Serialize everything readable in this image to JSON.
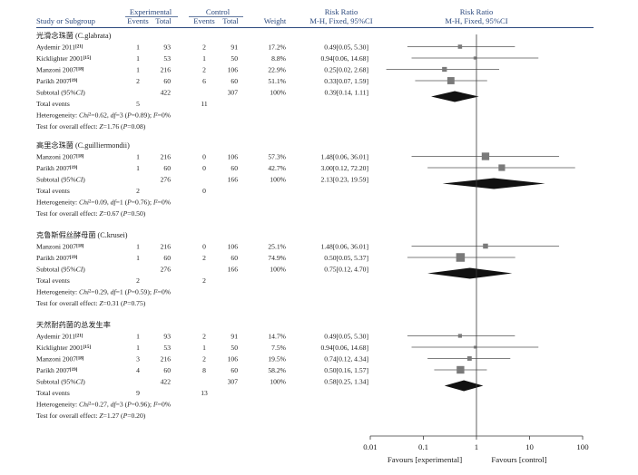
{
  "chart_data": {
    "type": "forest",
    "header": {
      "col_study": "Study or Subgroup",
      "group_experimental": "Experimental",
      "group_control": "Control",
      "col_events": "Events",
      "col_total": "Total",
      "col_weight": "Weight",
      "col_rr_title": "Risk Ratio",
      "col_rr_method": "M-H, Fixed, 95%CI",
      "plot_title": "Risk Ratio",
      "plot_method": "M-H, Fixed, 95%CI"
    },
    "x_axis": {
      "scale": "log",
      "ticks": [
        0.01,
        0.1,
        1,
        10,
        100
      ],
      "tick_labels": [
        "0.01",
        "0.1",
        "1",
        "10",
        "100"
      ],
      "favours_left": "Favours [experimental]",
      "favours_right": "Favours [control]"
    },
    "groups": [
      {
        "title": "光滑念珠菌 (C.glabrata)",
        "studies": [
          {
            "name": "Aydemir 2011",
            "ref": "[21]",
            "exp_events": "1",
            "exp_total": "93",
            "ctl_events": "2",
            "ctl_total": "91",
            "weight": "17.2%",
            "ci_text": "0.49[0.05, 5.30]",
            "rr": 0.49,
            "lo": 0.05,
            "hi": 5.3
          },
          {
            "name": "Kicklighter 2001",
            "ref": "[15]",
            "exp_events": "1",
            "exp_total": "53",
            "ctl_events": "1",
            "ctl_total": "50",
            "weight": "8.8%",
            "ci_text": "0.94[0.06, 14.68]",
            "rr": 0.94,
            "lo": 0.06,
            "hi": 14.68
          },
          {
            "name": "Manzoni 2007",
            "ref": "[18]",
            "exp_events": "1",
            "exp_total": "216",
            "ctl_events": "2",
            "ctl_total": "106",
            "weight": "22.9%",
            "ci_text": "0.25[0.02, 2.68]",
            "rr": 0.25,
            "lo": 0.02,
            "hi": 2.68
          },
          {
            "name": "Parikh 2007",
            "ref": "[19]",
            "exp_events": "2",
            "exp_total": "60",
            "ctl_events": "6",
            "ctl_total": "60",
            "weight": "51.1%",
            "ci_text": "0.33[0.07, 1.59]",
            "rr": 0.33,
            "lo": 0.07,
            "hi": 1.59
          }
        ],
        "subtotal": {
          "label": "Subtotal (95%CI)",
          "exp_total": "422",
          "ctl_total": "307",
          "weight": "100%",
          "ci_text": "0.39[0.14, 1.11]",
          "rr": 0.39,
          "lo": 0.14,
          "hi": 1.11
        },
        "total_events": {
          "label": "Total events",
          "exp": "5",
          "ctl": "11"
        },
        "heterogeneity": "Heterogeneity: Chi²=0.62, df=3 (P=0.89); I²=0%",
        "overall": "Test for overall effect: Z=1.76 (P=0.08)"
      },
      {
        "title": "高里念珠菌 (C.guilliermondii)",
        "studies": [
          {
            "name": "Manzoni 2007",
            "ref": "[18]",
            "exp_events": "1",
            "exp_total": "216",
            "ctl_events": "0",
            "ctl_total": "106",
            "weight": "57.3%",
            "ci_text": "1.48[0.06, 36.01]",
            "rr": 1.48,
            "lo": 0.06,
            "hi": 36.01
          },
          {
            "name": "Parikh 2007",
            "ref": "[19]",
            "exp_events": "1",
            "exp_total": "60",
            "ctl_events": "0",
            "ctl_total": "60",
            "weight": "42.7%",
            "ci_text": "3.00[0.12, 72.20]",
            "rr": 3.0,
            "lo": 0.12,
            "hi": 72.2
          }
        ],
        "subtotal": {
          "label": "Subtotal (95%CI)",
          "exp_total": "276",
          "ctl_total": "166",
          "weight": "100%",
          "ci_text": "2.13[0.23, 19.59]",
          "rr": 2.13,
          "lo": 0.23,
          "hi": 19.59
        },
        "total_events": {
          "label": "Total events",
          "exp": "2",
          "ctl": "0"
        },
        "heterogeneity": "Heterogeneity: Chi²=0.09, df=1 (P=0.76); I²=0%",
        "overall": "Test for overall effect: Z=0.67 (P=0.50)"
      },
      {
        "title": "克鲁斯假丝酵母菌 (C.krusei)",
        "studies": [
          {
            "name": "Manzoni 2007",
            "ref": "[18]",
            "exp_events": "1",
            "exp_total": "216",
            "ctl_events": "0",
            "ctl_total": "106",
            "weight": "25.1%",
            "ci_text": "1.48[0.06, 36.01]",
            "rr": 1.48,
            "lo": 0.06,
            "hi": 36.01
          },
          {
            "name": "Parikh 2007",
            "ref": "[19]",
            "exp_events": "1",
            "exp_total": "60",
            "ctl_events": "2",
            "ctl_total": "60",
            "weight": "74.9%",
            "ci_text": "0.50[0.05, 5.37]",
            "rr": 0.5,
            "lo": 0.05,
            "hi": 5.37
          }
        ],
        "subtotal": {
          "label": "Subtotal (95%CI)",
          "exp_total": "276",
          "ctl_total": "166",
          "weight": "100%",
          "ci_text": "0.75[0.12, 4.70]",
          "rr": 0.75,
          "lo": 0.12,
          "hi": 4.7
        },
        "total_events": {
          "label": "Total events",
          "exp": "2",
          "ctl": "2"
        },
        "heterogeneity": "Heterogeneity: Chi²=0.29, df=1 (P=0.59); I²=0%",
        "overall": "Test for overall effect: Z=0.31 (P=0.75)"
      },
      {
        "title": "天然耐药菌的总发生率",
        "studies": [
          {
            "name": "Aydemir 2011",
            "ref": "[21]",
            "exp_events": "1",
            "exp_total": "93",
            "ctl_events": "2",
            "ctl_total": "91",
            "weight": "14.7%",
            "ci_text": "0.49[0.05, 5.30]",
            "rr": 0.49,
            "lo": 0.05,
            "hi": 5.3
          },
          {
            "name": "Kicklighter 2001",
            "ref": "[15]",
            "exp_events": "1",
            "exp_total": "53",
            "ctl_events": "1",
            "ctl_total": "50",
            "weight": "7.5%",
            "ci_text": "0.94[0.06, 14.68]",
            "rr": 0.94,
            "lo": 0.06,
            "hi": 14.68
          },
          {
            "name": "Manzoni 2007",
            "ref": "[18]",
            "exp_events": "3",
            "exp_total": "216",
            "ctl_events": "2",
            "ctl_total": "106",
            "weight": "19.5%",
            "ci_text": "0.74[0.12, 4.34]",
            "rr": 0.74,
            "lo": 0.12,
            "hi": 4.34
          },
          {
            "name": "Parikh 2007",
            "ref": "[19]",
            "exp_events": "4",
            "exp_total": "60",
            "ctl_events": "8",
            "ctl_total": "60",
            "weight": "58.2%",
            "ci_text": "0.50[0.16, 1.57]",
            "rr": 0.5,
            "lo": 0.16,
            "hi": 1.57
          }
        ],
        "subtotal": {
          "label": "Subtotal (95%CI)",
          "exp_total": "422",
          "ctl_total": "307",
          "weight": "100%",
          "ci_text": "0.58[0.25, 1.34]",
          "rr": 0.58,
          "lo": 0.25,
          "hi": 1.34
        },
        "total_events": {
          "label": "Total events",
          "exp": "9",
          "ctl": "13"
        },
        "heterogeneity": "Heterogeneity: Chi²=0.27, df=3 (P=0.96); I²=0%",
        "overall": "Test for overall effect: Z=1.27 (P=0.20)"
      }
    ]
  }
}
